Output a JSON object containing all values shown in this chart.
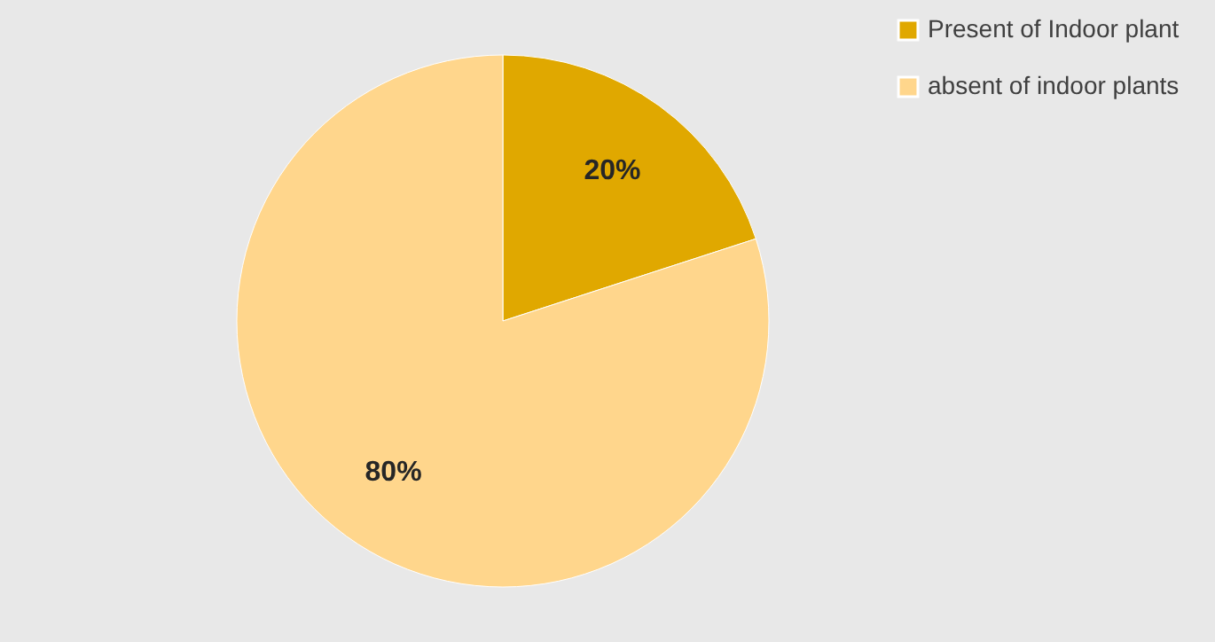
{
  "chart_data": {
    "type": "pie",
    "categories": [
      "Present of Indoor plant",
      "absent of indoor plants"
    ],
    "values": [
      20,
      80
    ],
    "colors": [
      "#e0a800",
      "#ffd68c"
    ],
    "value_labels": [
      "20%",
      "80%"
    ],
    "legend": "right"
  }
}
